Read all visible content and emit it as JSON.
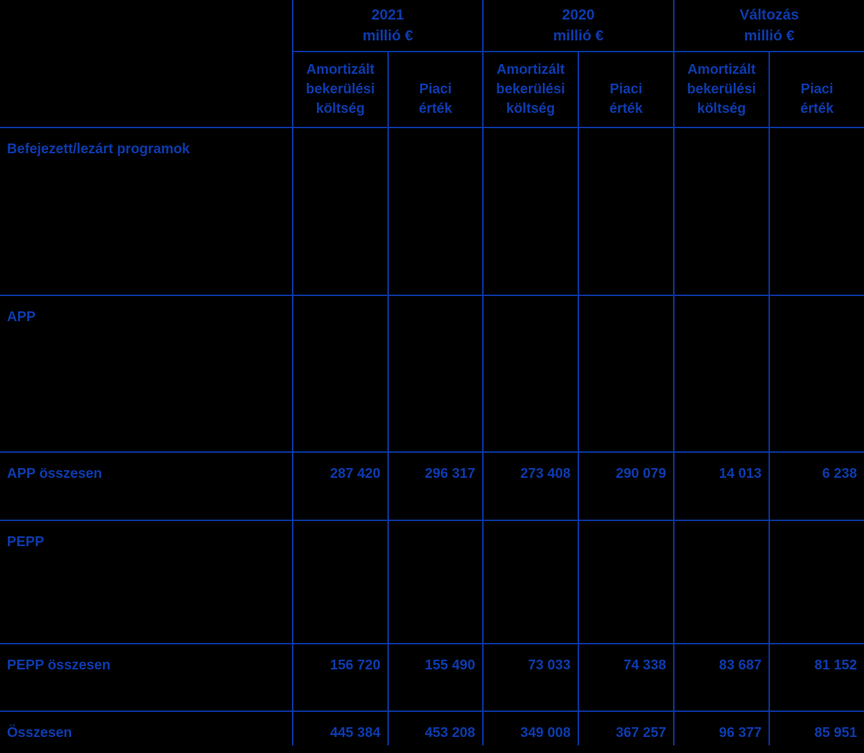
{
  "colors": {
    "background": "#000000",
    "ink": "#0D3BAF",
    "line": "#0B38A9"
  },
  "header": {
    "groups": [
      {
        "label": "2021",
        "unit": "millió €"
      },
      {
        "label": "2020",
        "unit": "millió €"
      },
      {
        "label": "Változás",
        "unit": "millió €"
      }
    ],
    "columns": [
      "Amortizált\nbekerülési\nköltség",
      "Piaci\nérték",
      "Amortizált\nbekerülési\nköltség",
      "Piaci\nérték",
      "Amortizált\nbekerülési\nköltség",
      "Piaci\nérték"
    ]
  },
  "rows": [
    {
      "label": "Befejezett/lezárt programok",
      "values": [
        "",
        "",
        "",
        "",
        "",
        ""
      ]
    },
    {
      "label": "APP",
      "values": [
        "",
        "",
        "",
        "",
        "",
        ""
      ]
    },
    {
      "label": "APP összesen",
      "values": [
        "287 420",
        "296 317",
        "273 408",
        "290 079",
        "14 013",
        "6 238"
      ]
    },
    {
      "label": "PEPP",
      "values": [
        "",
        "",
        "",
        "",
        "",
        ""
      ]
    },
    {
      "label": "PEPP összesen",
      "values": [
        "156 720",
        "155 490",
        "73 033",
        "74 338",
        "83 687",
        "81 152"
      ]
    },
    {
      "label": "Összesen",
      "values": [
        "445 384",
        "453 208",
        "349 008",
        "367 257",
        "96 377",
        "85 951"
      ]
    }
  ]
}
